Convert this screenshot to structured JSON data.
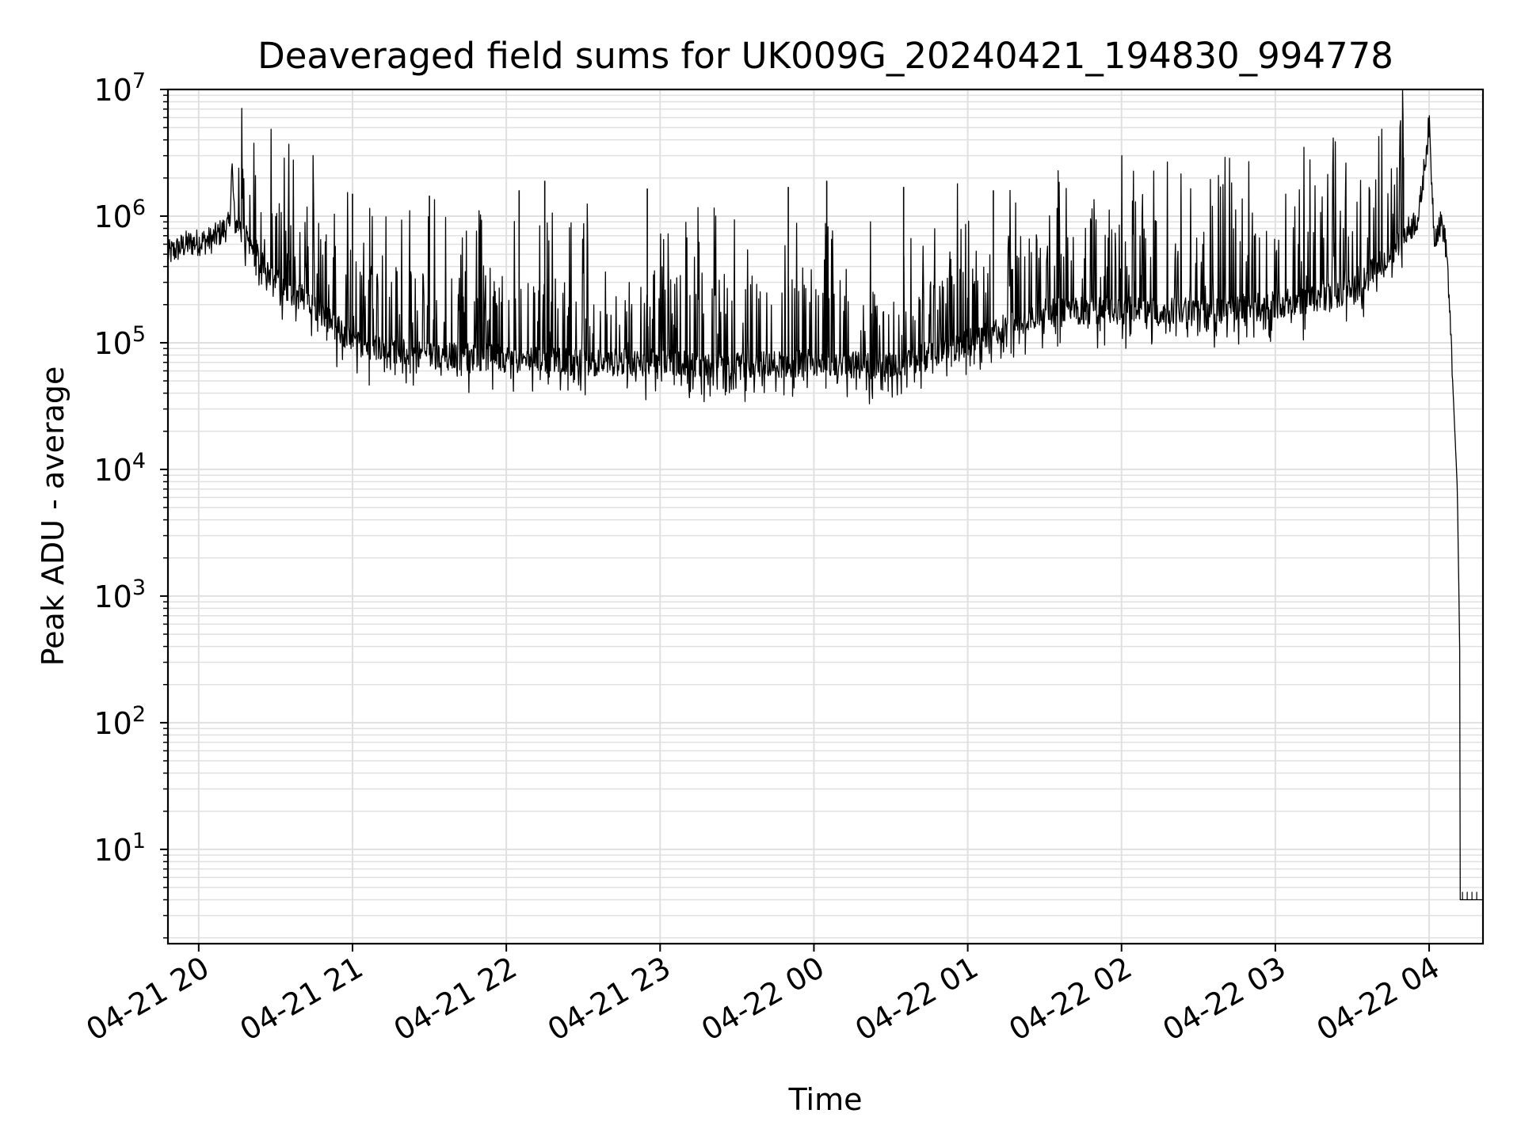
{
  "chart_data": {
    "type": "line",
    "title": "Deaveraged field sums for UK009G_20240421_194830_994778",
    "xlabel": "Time",
    "ylabel": "Peak ADU - average",
    "yscale": "log",
    "ylim": [
      1.8,
      10000000
    ],
    "xlim": [
      "2024-04-21 19:48",
      "2024-04-22 04:21"
    ],
    "grid": true,
    "line_color": "#000000",
    "grid_color": "#e0e0e0",
    "x_ticks": [
      {
        "label": "04-21 20",
        "t": "2024-04-21 20:00"
      },
      {
        "label": "04-21 21",
        "t": "2024-04-21 21:00"
      },
      {
        "label": "04-21 22",
        "t": "2024-04-21 22:00"
      },
      {
        "label": "04-21 23",
        "t": "2024-04-21 23:00"
      },
      {
        "label": "04-22 00",
        "t": "2024-04-22 00:00"
      },
      {
        "label": "04-22 01",
        "t": "2024-04-22 01:00"
      },
      {
        "label": "04-22 02",
        "t": "2024-04-22 02:00"
      },
      {
        "label": "04-22 03",
        "t": "2024-04-22 03:00"
      },
      {
        "label": "04-22 04",
        "t": "2024-04-22 04:00"
      }
    ],
    "y_ticks": [
      {
        "base": "10",
        "exp": "1",
        "value": 10
      },
      {
        "base": "10",
        "exp": "2",
        "value": 100
      },
      {
        "base": "10",
        "exp": "3",
        "value": 1000
      },
      {
        "base": "10",
        "exp": "4",
        "value": 10000
      },
      {
        "base": "10",
        "exp": "5",
        "value": 100000
      },
      {
        "base": "10",
        "exp": "6",
        "value": 1000000
      },
      {
        "base": "10",
        "exp": "7",
        "value": 10000000
      }
    ],
    "series": [
      {
        "points": [
          [
            "2024-04-21 19:48",
            500000
          ],
          [
            "2024-04-21 19:55",
            600000
          ],
          [
            "2024-04-21 20:05",
            650000
          ],
          [
            "2024-04-21 20:12",
            850000
          ],
          [
            "2024-04-21 20:13",
            2500000
          ],
          [
            "2024-04-21 20:14",
            900000
          ],
          [
            "2024-04-21 20:20",
            600000
          ],
          [
            "2024-04-21 20:30",
            300000
          ],
          [
            "2024-04-21 20:45",
            200000
          ],
          [
            "2024-04-21 21:00",
            100000
          ],
          [
            "2024-04-21 21:30",
            80000
          ],
          [
            "2024-04-21 22:00",
            75000
          ],
          [
            "2024-04-21 22:30",
            70000
          ],
          [
            "2024-04-21 23:00",
            70000
          ],
          [
            "2024-04-21 23:30",
            65000
          ],
          [
            "2024-04-22 00:00",
            70000
          ],
          [
            "2024-04-22 00:30",
            65000
          ],
          [
            "2024-04-22 01:00",
            100000
          ],
          [
            "2024-04-22 01:30",
            180000
          ],
          [
            "2024-04-22 02:00",
            180000
          ],
          [
            "2024-04-22 02:30",
            180000
          ],
          [
            "2024-04-22 03:00",
            200000
          ],
          [
            "2024-04-22 03:30",
            250000
          ],
          [
            "2024-04-22 03:45",
            500000
          ],
          [
            "2024-04-22 03:56",
            1000000
          ],
          [
            "2024-04-22 04:00",
            5300000
          ],
          [
            "2024-04-22 04:02",
            700000
          ],
          [
            "2024-04-22 04:05",
            900000
          ],
          [
            "2024-04-22 04:07",
            500000
          ],
          [
            "2024-04-22 04:09",
            60000
          ],
          [
            "2024-04-22 04:11",
            7000
          ],
          [
            "2024-04-22 04:12",
            300
          ],
          [
            "2024-04-22 04:12",
            4
          ],
          [
            "2024-04-22 04:21",
            4
          ]
        ],
        "spikes": [
          [
            "2024-04-21 20:13",
            2500000
          ],
          [
            "2024-04-21 21:00",
            1500000
          ],
          [
            "2024-04-21 21:30",
            1450000
          ],
          [
            "2024-04-21 22:05",
            1600000
          ],
          [
            "2024-04-21 22:15",
            1900000
          ],
          [
            "2024-04-21 22:55",
            1650000
          ],
          [
            "2024-04-21 23:50",
            1700000
          ],
          [
            "2024-04-22 00:05",
            1900000
          ],
          [
            "2024-04-22 00:35",
            1700000
          ],
          [
            "2024-04-22 01:10",
            1600000
          ],
          [
            "2024-04-22 03:50",
            2900000
          ],
          [
            "2024-04-22 04:00",
            5300000
          ]
        ]
      }
    ]
  }
}
